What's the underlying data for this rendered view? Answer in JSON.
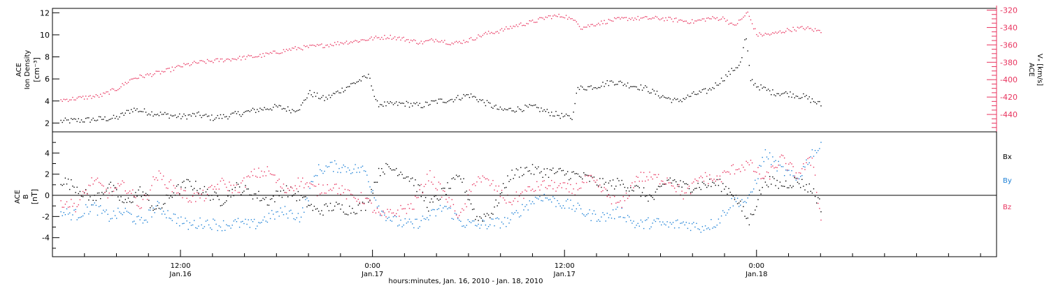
{
  "figure": {
    "xlabel": "hours:minutes, Jan. 16, 2010 - Jan. 18, 2010",
    "xticks": [
      {
        "time": "12:00",
        "date": "Jan.16",
        "hour": 12
      },
      {
        "time": "0:00",
        "date": "Jan.17",
        "hour": 24
      },
      {
        "time": "12:00",
        "date": "Jan.17",
        "hour": 36
      },
      {
        "time": "0:00",
        "date": "Jan.18",
        "hour": 48
      }
    ],
    "xlim_hours": [
      4,
      63
    ],
    "data_end_hour": 52.1
  },
  "colors": {
    "axis": "#000000",
    "density": "#000000",
    "vx": "#e8335e",
    "bx": "#000000",
    "by": "#1a7fd6",
    "bz": "#e8335e"
  },
  "chart_data": [
    {
      "type": "scatter",
      "panel": "plasma",
      "ylabel_left": {
        "line1": "ACE",
        "line2": "Ion Density",
        "unit": "[cm⁻³]"
      },
      "ylabel_right": {
        "line1": "ACE",
        "line2": "Vₓ [km/s]"
      },
      "ylim_left": [
        1.2,
        12.4
      ],
      "ylim_right": [
        -460,
        -318
      ],
      "yticks_left": [
        2,
        4,
        6,
        8,
        10,
        12
      ],
      "yticks_right": [
        -440,
        -420,
        -400,
        -380,
        -360,
        -340,
        -320
      ],
      "series": [
        {
          "axis": "left",
          "x_hours": [
            4.5,
            6,
            8,
            9,
            10,
            11,
            12,
            13,
            14,
            15,
            16,
            17,
            18,
            19,
            19.5,
            20,
            21,
            22,
            23,
            23.8,
            24.2,
            25,
            26,
            27,
            28,
            29,
            30,
            31,
            32,
            33,
            34,
            35,
            36,
            36.5,
            36.7,
            37,
            38,
            39,
            40,
            41,
            42,
            43,
            44,
            45,
            46,
            47,
            47.3,
            47.6,
            48,
            49,
            50,
            51,
            52
          ],
          "values": [
            2.2,
            2.3,
            2.5,
            3.3,
            3.0,
            2.8,
            2.6,
            2.8,
            2.5,
            2.7,
            3.0,
            3.3,
            3.5,
            3.2,
            3.5,
            4.8,
            4.2,
            5.0,
            5.8,
            6.3,
            3.8,
            3.7,
            3.8,
            3.6,
            4.0,
            4.2,
            4.6,
            3.9,
            3.2,
            3.3,
            3.5,
            3.0,
            2.6,
            2.5,
            5.0,
            5.2,
            5.4,
            5.8,
            5.5,
            5.2,
            4.5,
            4.0,
            4.6,
            5.0,
            6.2,
            7.5,
            10.0,
            6.0,
            5.4,
            4.8,
            4.7,
            4.4,
            3.7
          ]
        },
        {
          "axis": "right",
          "x_hours": [
            4.5,
            6,
            7,
            8,
            9,
            10,
            11,
            12,
            13,
            14,
            15,
            16,
            17,
            18,
            19,
            20,
            21,
            22,
            23,
            24,
            25,
            26,
            27,
            28,
            29,
            30,
            31,
            32,
            33,
            34,
            35,
            36,
            36.5,
            36.7,
            37,
            38,
            39,
            40,
            41,
            42,
            43,
            44,
            45,
            46,
            46.5,
            47,
            47.4,
            48,
            49,
            50,
            51,
            52
          ],
          "values": [
            -423,
            -420,
            -418,
            -410,
            -398,
            -394,
            -390,
            -384,
            -380,
            -378,
            -376,
            -374,
            -372,
            -368,
            -364,
            -362,
            -360,
            -357,
            -355,
            -352,
            -350,
            -353,
            -357,
            -353,
            -358,
            -354,
            -347,
            -343,
            -337,
            -333,
            -327,
            -326,
            -332,
            -330,
            -340,
            -335,
            -331,
            -329,
            -329,
            -329,
            -331,
            -333,
            -329,
            -329,
            -338,
            -331,
            -322,
            -348,
            -347,
            -342,
            -340,
            -344
          ]
        }
      ]
    },
    {
      "type": "scatter",
      "panel": "magnetic",
      "ylabel_left": {
        "line1": "ACE",
        "line2": "B",
        "unit": "[nT]"
      },
      "ylim": [
        -5.8,
        6.0
      ],
      "yticks": [
        -4,
        -2,
        0,
        2,
        4
      ],
      "zero_line": true,
      "series": [
        {
          "name": "Bx",
          "x_hours": [
            4.5,
            5.5,
            6.5,
            7.5,
            8.5,
            9.5,
            10.5,
            11.5,
            12.5,
            13.5,
            14.5,
            15.5,
            16.5,
            17.5,
            18.5,
            19.5,
            20.5,
            21.5,
            22.5,
            23.5,
            24.5,
            25.5,
            26.5,
            27.5,
            28.5,
            29.5,
            30.5,
            31.5,
            32.5,
            33.5,
            34.5,
            35.5,
            36.5,
            37.5,
            38.5,
            39.5,
            40.5,
            41.5,
            42.5,
            43.5,
            44.5,
            45.5,
            46.5,
            47.5,
            48.5,
            49.5,
            50.5,
            51.5,
            52
          ],
          "values": [
            1.5,
            0.8,
            -0.5,
            1.0,
            -0.8,
            0.5,
            -1.5,
            0.3,
            1.2,
            0.4,
            -0.5,
            0.8,
            0.2,
            -0.5,
            0.6,
            -0.2,
            -1.5,
            -1.0,
            -1.3,
            -1.0,
            2.6,
            2.5,
            1.5,
            -1.0,
            0.5,
            1.8,
            -2.2,
            -1.5,
            1.8,
            2.5,
            2.3,
            2.2,
            2.0,
            1.6,
            1.0,
            1.2,
            0.6,
            -0.3,
            1.6,
            0.8,
            1.0,
            1.2,
            0.3,
            -2.5,
            1.5,
            1.0,
            1.4,
            0.5,
            -1.0
          ]
        },
        {
          "name": "By",
          "x_hours": [
            4.5,
            5.5,
            6.5,
            7.5,
            8.5,
            9.5,
            10.5,
            11.5,
            12.5,
            13.5,
            14.5,
            15.5,
            16.5,
            17.5,
            18.5,
            19.5,
            20.5,
            21.5,
            22.5,
            23.5,
            24.5,
            25.5,
            26.5,
            27.5,
            28.5,
            29.5,
            30.5,
            31.5,
            32.5,
            33.5,
            34.5,
            35.5,
            36.5,
            37.5,
            38.5,
            39.5,
            40.5,
            41.5,
            42.5,
            43.5,
            44.5,
            45.5,
            46.5,
            47.5,
            48.5,
            49.5,
            50.5,
            51.5,
            52
          ],
          "values": [
            -1.6,
            -1.8,
            -1.0,
            -2.0,
            -1.5,
            -2.6,
            -1.0,
            -2.0,
            -2.8,
            -2.5,
            -2.8,
            -2.6,
            -2.8,
            -2.0,
            -1.5,
            -2.0,
            2.4,
            2.8,
            2.6,
            2.4,
            -1.5,
            -2.5,
            -2.8,
            -2.0,
            -1.0,
            -2.5,
            -2.8,
            -2.6,
            -2.4,
            -1.0,
            0.0,
            -0.6,
            -1.0,
            -1.8,
            -2.0,
            -1.5,
            -2.8,
            -2.5,
            -2.8,
            -2.6,
            -3.0,
            -2.5,
            -0.5,
            -0.5,
            4.0,
            2.5,
            1.5,
            4.2,
            4.5
          ]
        },
        {
          "name": "Bz",
          "x_hours": [
            4.5,
            5.5,
            6.5,
            7.5,
            8.5,
            9.5,
            10.5,
            11.5,
            12.5,
            13.5,
            14.5,
            15.5,
            16.5,
            17.5,
            18.5,
            19.5,
            20.5,
            21.5,
            22.5,
            23.5,
            24.5,
            25.5,
            26.5,
            27.5,
            28.5,
            29.5,
            30.5,
            31.5,
            32.5,
            33.5,
            34.5,
            35.5,
            36.5,
            37.5,
            38.5,
            39.5,
            40.5,
            41.5,
            42.5,
            43.5,
            44.5,
            45.5,
            46.5,
            47.5,
            48.5,
            49.5,
            50.5,
            51.5,
            52
          ],
          "values": [
            -0.5,
            -1.0,
            1.5,
            0.2,
            1.0,
            -1.0,
            2.0,
            0.8,
            -0.2,
            0.0,
            1.2,
            0.6,
            2.0,
            2.3,
            0.5,
            1.4,
            0.5,
            1.0,
            0.0,
            -0.3,
            -2.0,
            -1.5,
            -1.0,
            2.0,
            0.0,
            -2.0,
            1.8,
            1.0,
            -0.6,
            0.3,
            1.0,
            0.9,
            0.5,
            1.6,
            0.3,
            -1.0,
            1.8,
            1.7,
            1.5,
            0.0,
            1.8,
            1.5,
            2.5,
            3.0,
            1.5,
            3.5,
            2.0,
            3.5,
            -2.5
          ]
        }
      ]
    }
  ]
}
